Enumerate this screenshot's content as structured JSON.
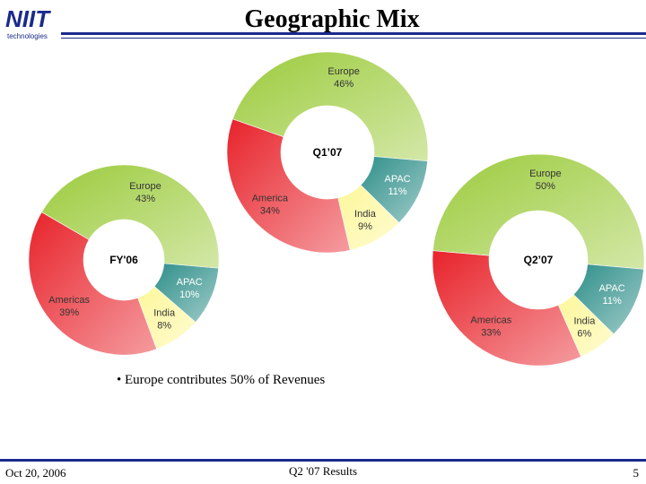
{
  "header": {
    "logo": "NIIT",
    "logo_sub": "technologies",
    "title": "Geographic Mix"
  },
  "chart_data": [
    {
      "type": "pie",
      "title": "FY'06",
      "categories": [
        "Europe",
        "APAC",
        "India",
        "Americas"
      ],
      "values": [
        43,
        10,
        8,
        39
      ],
      "value_labels": [
        "43%",
        "10%",
        "8%",
        "39%"
      ],
      "colors": [
        "#9ccb3c",
        "#2f8f8a",
        "#fdf79a",
        "#e8232b"
      ]
    },
    {
      "type": "pie",
      "title": "Q1’07",
      "categories": [
        "Europe",
        "APAC",
        "India",
        "America"
      ],
      "values": [
        46,
        11,
        9,
        34
      ],
      "value_labels": [
        "46%",
        "11%",
        "9%",
        "34%"
      ],
      "colors": [
        "#9ccb3c",
        "#2f8f8a",
        "#fdf79a",
        "#e8232b"
      ]
    },
    {
      "type": "pie",
      "title": "Q2’07",
      "categories": [
        "Europe",
        "APAC",
        "India",
        "Americas"
      ],
      "values": [
        50,
        11,
        6,
        33
      ],
      "value_labels": [
        "50%",
        "11%",
        "6%",
        "33%"
      ],
      "colors": [
        "#9ccb3c",
        "#2f8f8a",
        "#fdf79a",
        "#e8232b"
      ]
    }
  ],
  "bullet": "• Europe contributes 50% of Revenues",
  "footer": {
    "date": "Oct 20, 2006",
    "center": "Q2 '07 Results",
    "page": "5"
  }
}
